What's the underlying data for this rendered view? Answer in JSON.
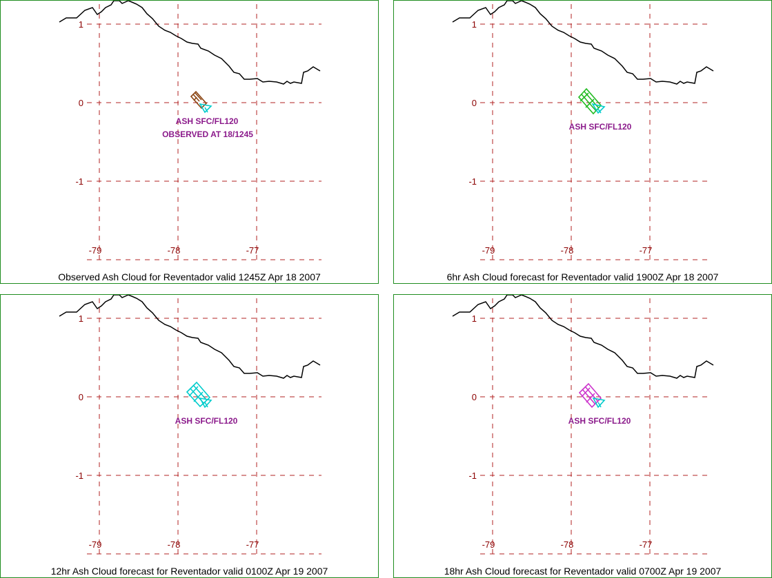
{
  "colors": {
    "panel_border": "#1e8c1e",
    "grid": "#b22222",
    "tick_label": "#8b0000",
    "coastline": "#000000",
    "text_label": "#8b1a8b",
    "vent_arrow": "#00cccc"
  },
  "icons": [
    "vent-arrow-icon",
    "ash-cloud-polygon-icon"
  ],
  "map": {
    "lat_ticks": [
      "1",
      "0",
      "-1"
    ],
    "lon_ticks": [
      "-79",
      "-78",
      "-77"
    ]
  },
  "panels": [
    {
      "caption": "Observed Ash Cloud for Reventador valid 1245Z Apr 18 2007",
      "cloud_color": "#8b4513",
      "label": "ASH SFC/FL120",
      "sublabel": "OBSERVED AT 18/1245"
    },
    {
      "caption": "6hr Ash Cloud forecast for Reventador valid 1900Z Apr 18 2007",
      "cloud_color": "#22bb22",
      "label": "ASH SFC/FL120"
    },
    {
      "caption": "12hr Ash Cloud forecast for Reventador valid 0100Z Apr 19 2007",
      "cloud_color": "#00cccc",
      "label": "ASH SFC/FL120"
    },
    {
      "caption": "18hr Ash Cloud forecast for Reventador valid 0700Z Apr 19 2007",
      "cloud_color": "#cc33cc",
      "label": "ASH SFC/FL120"
    }
  ]
}
